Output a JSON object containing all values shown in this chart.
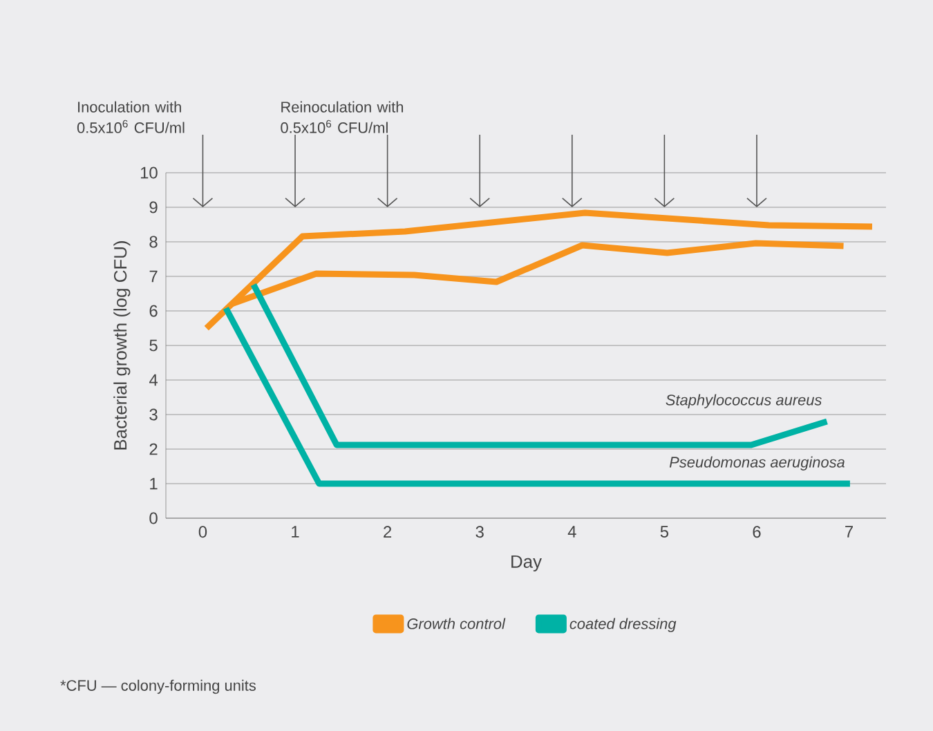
{
  "chart_data": {
    "type": "line",
    "xlabel": "Day",
    "ylabel": "Bacterial growth (log CFU)",
    "xlim": [
      -0.4,
      7.4
    ],
    "ylim": [
      0,
      10
    ],
    "xticks": [
      0,
      1,
      2,
      3,
      4,
      5,
      6,
      7
    ],
    "yticks": [
      0,
      1,
      2,
      3,
      4,
      5,
      6,
      7,
      8,
      9,
      10
    ],
    "grid": "y",
    "legend": "bottom",
    "marker": "none",
    "line_style": "solid",
    "series": [
      {
        "name": "Growth control",
        "color": "#f7941d",
        "x": [
          0.04,
          1.08,
          2.19,
          4.14,
          6.13,
          7.25
        ],
        "values": [
          5.5,
          8.16,
          8.3,
          8.84,
          8.48,
          8.44
        ]
      },
      {
        "color": "#f7941d",
        "x": [
          0.31,
          1.23,
          2.29,
          3.18,
          4.11,
          5.03,
          5.99,
          6.94
        ],
        "values": [
          6.2,
          7.08,
          7.04,
          6.84,
          7.9,
          7.68,
          7.96,
          7.88
        ]
      },
      {
        "name": "coated dressing",
        "color": "#00b2a5",
        "x": [
          0.25,
          1.26,
          7.01
        ],
        "values": [
          6.08,
          1.0,
          1.0
        ]
      },
      {
        "color": "#00b2a5",
        "x": [
          0.55,
          1.45,
          5.94,
          6.76
        ],
        "values": [
          6.76,
          2.12,
          2.12,
          2.8
        ]
      }
    ],
    "ref_lines": [
      {
        "axis": "x",
        "value": 0,
        "label": "Inoculation with 0.5x10$^{6}$ CFU/ml",
        "color": "#555555"
      },
      {
        "axis": "x",
        "value": 1,
        "label": "Reinoculation with 0.5x10$^{6}$ CFU/ml",
        "color": "#555555"
      },
      {
        "axis": "x",
        "value": 2,
        "color": "#555555"
      },
      {
        "axis": "x",
        "value": 3,
        "color": "#555555"
      },
      {
        "axis": "x",
        "value": 4,
        "color": "#555555"
      },
      {
        "axis": "x",
        "value": 5,
        "color": "#555555"
      },
      {
        "axis": "x",
        "value": 6,
        "color": "#555555"
      }
    ],
    "annotations": [
      {
        "text": "*Staphylococcus aureus*",
        "x": 6.76,
        "y": 2.8
      },
      {
        "text": "*Pseudomonas aeruginosa*",
        "x": 7.01,
        "y": 1.0
      },
      "*CFU — colony-forming units"
    ]
  }
}
